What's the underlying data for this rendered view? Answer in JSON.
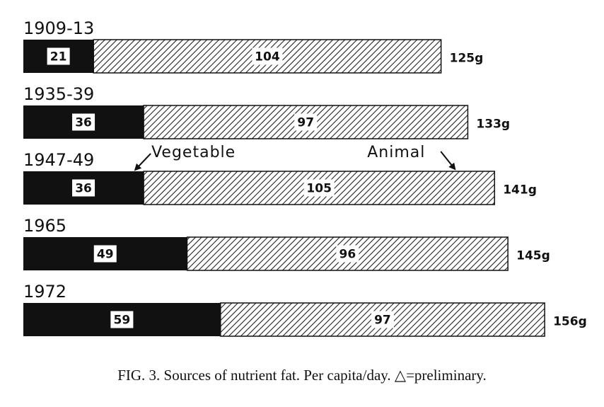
{
  "chart_data": {
    "type": "bar",
    "orientation": "horizontal",
    "stacked": true,
    "categories": [
      "1909-13",
      "1935-39",
      "1947-49",
      "1965",
      "1972"
    ],
    "series": [
      {
        "name": "Vegetable",
        "values": [
          21,
          36,
          36,
          49,
          59
        ],
        "color": "#111111",
        "fill": "solid"
      },
      {
        "name": "Animal",
        "values": [
          104,
          97,
          105,
          96,
          97
        ],
        "color": "#ffffff",
        "fill": "diagonal-hatch"
      }
    ],
    "totals": [
      "125g",
      "133g",
      "141g",
      "145g",
      "156g"
    ],
    "annotations": [
      "Vegetable",
      "Animal"
    ],
    "title": "",
    "caption": "FIG. 3. Sources of nutrient fat. Per capita/day. △=preliminary.",
    "xlabel": "",
    "ylabel": "",
    "grid": false,
    "legend": "none"
  }
}
